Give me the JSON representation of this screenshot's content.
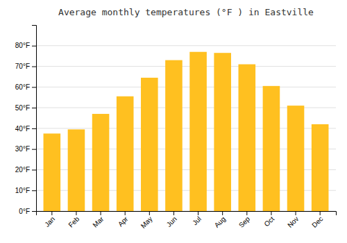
{
  "chart_data": {
    "type": "bar",
    "title": "Average monthly temperatures (°F ) in Eastville",
    "categories": [
      "Jan",
      "Feb",
      "Mar",
      "Apr",
      "May",
      "Jun",
      "Jul",
      "Aug",
      "Sep",
      "Oct",
      "Nov",
      "Dec"
    ],
    "values": [
      37.5,
      39.5,
      47,
      55.5,
      64.5,
      73,
      77,
      76.5,
      71,
      60.5,
      51,
      42
    ],
    "color": "#FFC020",
    "ylim": [
      0,
      90
    ],
    "yticks": [
      {
        "value": 0,
        "label": "0°F"
      },
      {
        "value": 10,
        "label": "10°F"
      },
      {
        "value": 20,
        "label": "20°F"
      },
      {
        "value": 30,
        "label": "30°F"
      },
      {
        "value": 40,
        "label": "40°F"
      },
      {
        "value": 50,
        "label": "50°F"
      },
      {
        "value": 60,
        "label": "60°F"
      },
      {
        "value": 70,
        "label": "70°F"
      },
      {
        "value": 80,
        "label": "80°F"
      }
    ],
    "grid": true
  }
}
